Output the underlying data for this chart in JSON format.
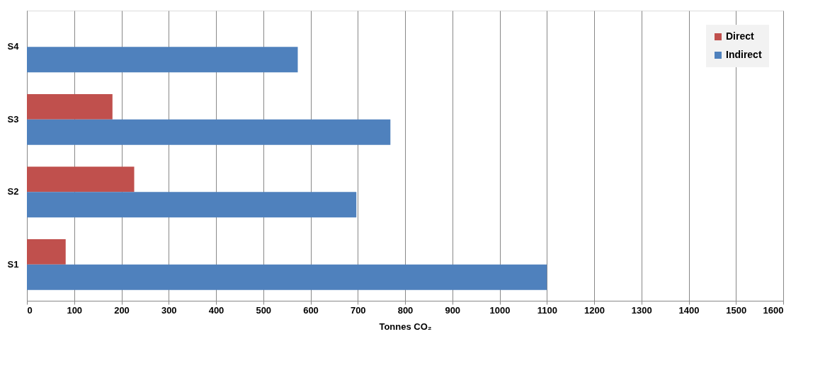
{
  "chart_data": {
    "type": "bar",
    "orientation": "horizontal",
    "categories": [
      "S4",
      "S3",
      "S2",
      "S1"
    ],
    "series": [
      {
        "name": "Direct",
        "color": "#c0504d",
        "values": [
          null,
          181,
          227,
          82
        ]
      },
      {
        "name": "Indirect",
        "color": "#4f81bd",
        "values": [
          573,
          769,
          697,
          1100
        ]
      }
    ],
    "xlabel": "Tonnes CO₂",
    "xlim": [
      0,
      1600
    ],
    "xticks": [
      0,
      100,
      200,
      300,
      400,
      500,
      600,
      700,
      800,
      900,
      1000,
      1100,
      1200,
      1300,
      1400,
      1500,
      1600
    ],
    "grid": "x",
    "legend": "top right"
  }
}
